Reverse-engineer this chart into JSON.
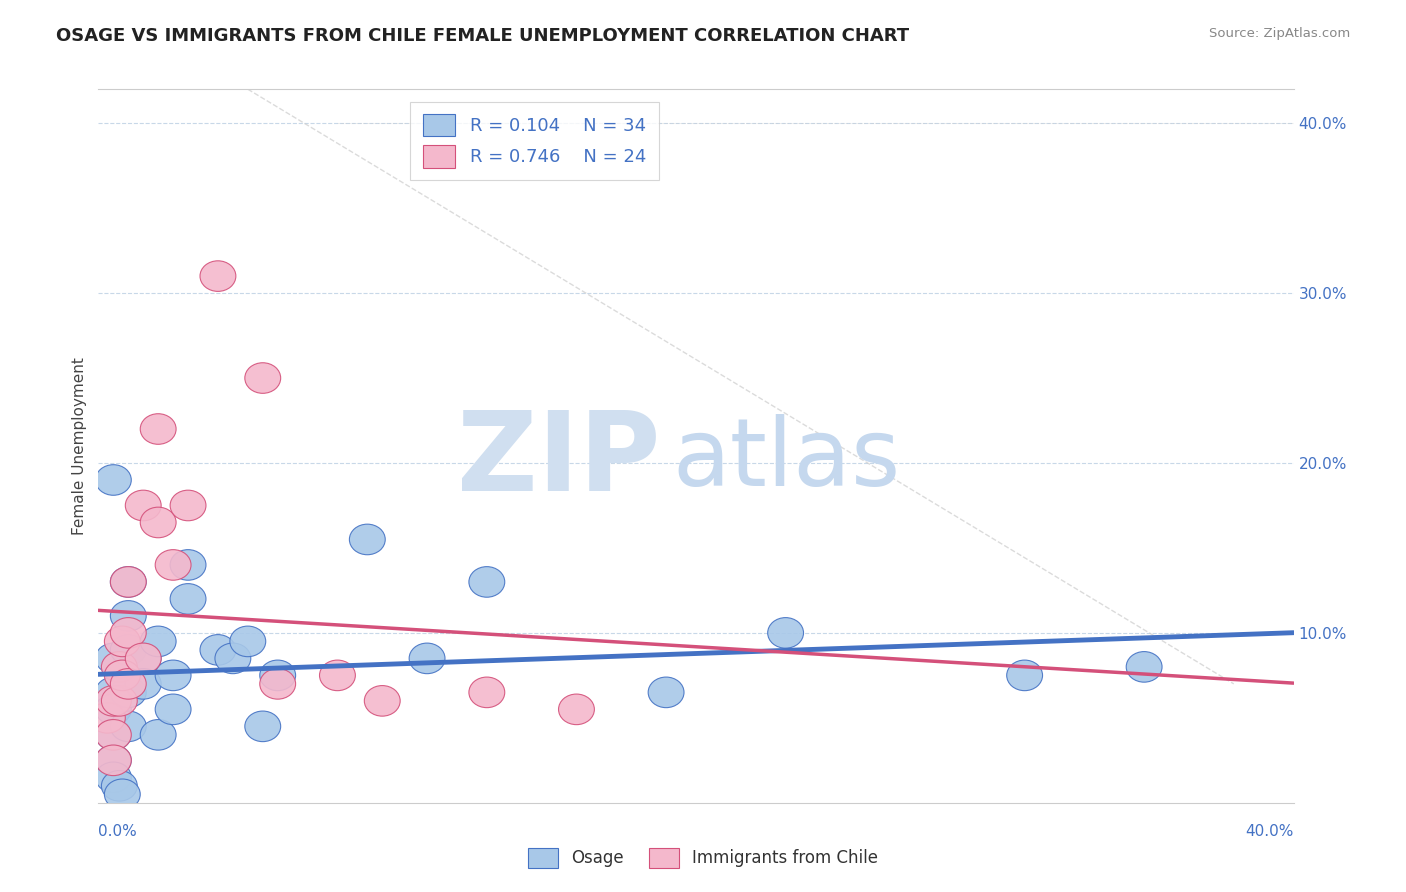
{
  "title": "OSAGE VS IMMIGRANTS FROM CHILE FEMALE UNEMPLOYMENT CORRELATION CHART",
  "source": "Source: ZipAtlas.com",
  "ylabel": "Female Unemployment",
  "legend_osage": "Osage",
  "legend_chile": "Immigrants from Chile",
  "osage_R": "R = 0.104",
  "osage_N": "N = 34",
  "chile_R": "R = 0.746",
  "chile_N": "N = 24",
  "xlim": [
    0.0,
    0.4
  ],
  "ylim": [
    0.0,
    0.42
  ],
  "yticks": [
    0.1,
    0.2,
    0.3,
    0.4
  ],
  "osage_color": "#a8c8e8",
  "osage_line_color": "#4472c4",
  "chile_color": "#f4b8cc",
  "chile_line_color": "#d4507a",
  "watermark_zip_color": "#d0dff0",
  "watermark_atlas_color": "#c5d8ee",
  "background_color": "#ffffff",
  "grid_color": "#c8d8e8",
  "osage_x": [
    0.005,
    0.005,
    0.005,
    0.005,
    0.005,
    0.005,
    0.005,
    0.007,
    0.008,
    0.01,
    0.01,
    0.01,
    0.01,
    0.01,
    0.015,
    0.015,
    0.02,
    0.02,
    0.025,
    0.025,
    0.03,
    0.03,
    0.04,
    0.045,
    0.05,
    0.055,
    0.06,
    0.09,
    0.11,
    0.13,
    0.19,
    0.23,
    0.31,
    0.35
  ],
  "osage_y": [
    0.19,
    0.085,
    0.065,
    0.055,
    0.04,
    0.025,
    0.015,
    0.01,
    0.005,
    0.13,
    0.11,
    0.09,
    0.065,
    0.045,
    0.085,
    0.07,
    0.095,
    0.04,
    0.075,
    0.055,
    0.14,
    0.12,
    0.09,
    0.085,
    0.095,
    0.045,
    0.075,
    0.155,
    0.085,
    0.13,
    0.065,
    0.1,
    0.075,
    0.08
  ],
  "chile_x": [
    0.003,
    0.005,
    0.005,
    0.005,
    0.007,
    0.007,
    0.008,
    0.008,
    0.01,
    0.01,
    0.01,
    0.015,
    0.015,
    0.02,
    0.02,
    0.025,
    0.03,
    0.04,
    0.055,
    0.06,
    0.08,
    0.095,
    0.13,
    0.16
  ],
  "chile_y": [
    0.05,
    0.06,
    0.04,
    0.025,
    0.08,
    0.06,
    0.095,
    0.075,
    0.13,
    0.1,
    0.07,
    0.175,
    0.085,
    0.22,
    0.165,
    0.14,
    0.175,
    0.31,
    0.25,
    0.07,
    0.075,
    0.06,
    0.065,
    0.055
  ]
}
